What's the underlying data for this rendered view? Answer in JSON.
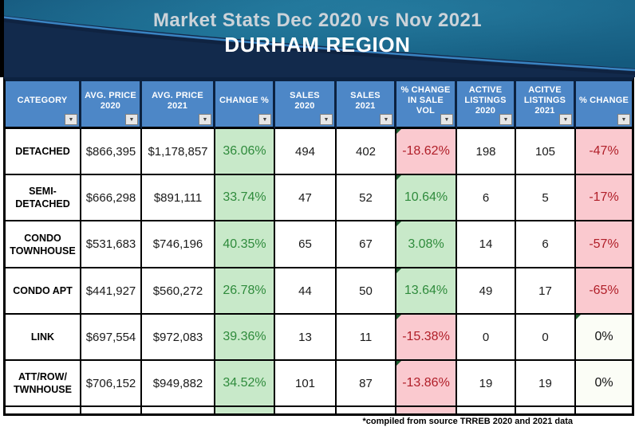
{
  "hero": {
    "title_line1": "Market Stats Dec 2020 vs Nov 2021",
    "title_line2": "DURHAM REGION"
  },
  "table": {
    "columns": [
      {
        "key": "category",
        "label": "CATEGORY",
        "colorize": "none"
      },
      {
        "key": "avg_price_2020",
        "label": "AVG. PRICE\n2020",
        "colorize": "none"
      },
      {
        "key": "avg_price_2021",
        "label": "AVG. PRICE\n2021",
        "colorize": "none"
      },
      {
        "key": "change_pct",
        "label": "CHANGE %",
        "colorize": "sign"
      },
      {
        "key": "sales_2020",
        "label": "SALES\n2020",
        "colorize": "none"
      },
      {
        "key": "sales_2021",
        "label": "SALES\n2021",
        "colorize": "none"
      },
      {
        "key": "pct_change_sale_vol",
        "label": "% CHANGE\nIN SALE\nVOL",
        "colorize": "sign"
      },
      {
        "key": "active_listings_2020",
        "label": "ACTIVE\nLISTINGS\n2020",
        "colorize": "none"
      },
      {
        "key": "active_listings_2021",
        "label": "ACITVE\nLISTINGS\n2021",
        "colorize": "none"
      },
      {
        "key": "pct_change",
        "label": "% CHANGE",
        "colorize": "sign-neutral"
      }
    ],
    "rows": [
      [
        "DETACHED",
        "$866,395",
        "$1,178,857",
        "36.06%",
        "494",
        "402",
        "-18.62%",
        "198",
        "105",
        "-47%"
      ],
      [
        "SEMI-\nDETACHED",
        "$666,298",
        "$891,111",
        "33.74%",
        "47",
        "52",
        "10.64%",
        "6",
        "5",
        "-17%"
      ],
      [
        "CONDO\nTOWNHOUSE",
        "$531,683",
        "$746,196",
        "40.35%",
        "65",
        "67",
        "3.08%",
        "14",
        "6",
        "-57%"
      ],
      [
        "CONDO APT",
        "$441,927",
        "$560,272",
        "26.78%",
        "44",
        "50",
        "13.64%",
        "49",
        "17",
        "-65%"
      ],
      [
        "LINK",
        "$697,554",
        "$972,083",
        "39.36%",
        "13",
        "11",
        "-15.38%",
        "0",
        "0",
        "0%"
      ],
      [
        "ATT/ROW/\nTWNHOUSE",
        "$706,152",
        "$949,882",
        "34.52%",
        "101",
        "87",
        "-13.86%",
        "19",
        "19",
        "0%"
      ]
    ],
    "corner_markers": [
      [
        0,
        6
      ],
      [
        1,
        6
      ],
      [
        2,
        6
      ],
      [
        3,
        6
      ],
      [
        4,
        6
      ],
      [
        5,
        6
      ],
      [
        4,
        9
      ]
    ],
    "partial_row_colors": {
      "3": "pos",
      "6": "neg"
    },
    "filter_arrow_glyph": "▼"
  },
  "footnote": "*compiled from source TRREB 2020 and 2021 data",
  "colors": {
    "header_bg": "#4d87c7",
    "navy_border": "#0c2240",
    "positive_bg": "#c8e9c9",
    "positive_text": "#2f8b3c",
    "negative_bg": "#fac9cf",
    "negative_text": "#b01e28",
    "hero_navy": "#122a4c",
    "hero_teal": "#1b6d91",
    "hero_curve_line": "#3d89c9"
  }
}
